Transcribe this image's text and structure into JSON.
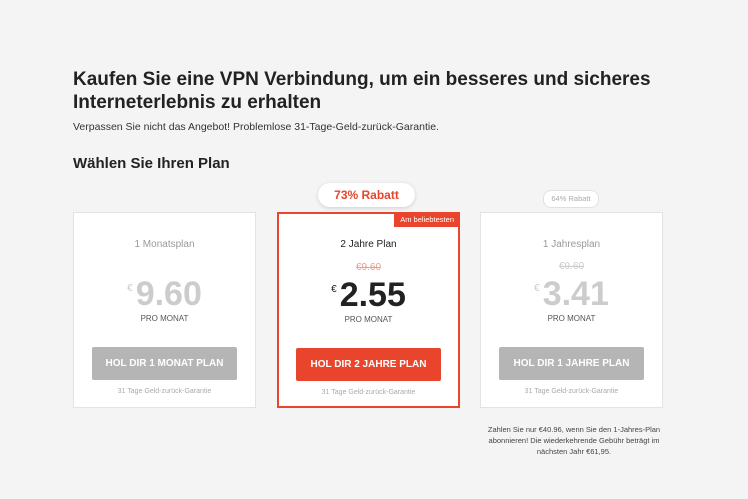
{
  "header": {
    "title": "Kaufen Sie eine VPN Verbindung, um ein besseres und sicheres Interneterlebnis zu erhalten",
    "subtitle": "Verpassen Sie nicht das Angebot! Problemlose 31-Tage-Geld-zurück-Garantie.",
    "choose_plan": "Wählen Sie Ihren Plan"
  },
  "accent": "#e8452c",
  "plans": [
    {
      "name": "1 Monatsplan",
      "old_price": "",
      "currency": "€",
      "price": "9.60",
      "per": "PRO MONAT",
      "button": "HOL DIR 1 MONAT PLAN",
      "guarantee": "31 Tage Geld-zurück-Garantie"
    },
    {
      "name": "2 Jahre Plan",
      "old_price": "€9.60",
      "currency": "€",
      "price": "2.55",
      "per": "PRO MONAT",
      "button": "HOL DIR 2 JAHRE PLAN",
      "guarantee": "31 Tage Geld-zurück-Garantie",
      "discount": "73% Rabatt",
      "tag": "Am beliebtesten"
    },
    {
      "name": "1 Jahresplan",
      "old_price": "€9.60",
      "currency": "€",
      "price": "3.41",
      "per": "PRO MONAT",
      "button": "HOL DIR 1 JAHRE PLAN",
      "guarantee": "31 Tage Geld-zurück-Garantie",
      "discount": "64% Rabatt"
    }
  ],
  "note": "Zahlen Sie nur €40.96, wenn Sie den 1-Jahres-Plan abonnieren! Die wiederkehrende Gebühr beträgt im nächsten Jahr €61,95."
}
